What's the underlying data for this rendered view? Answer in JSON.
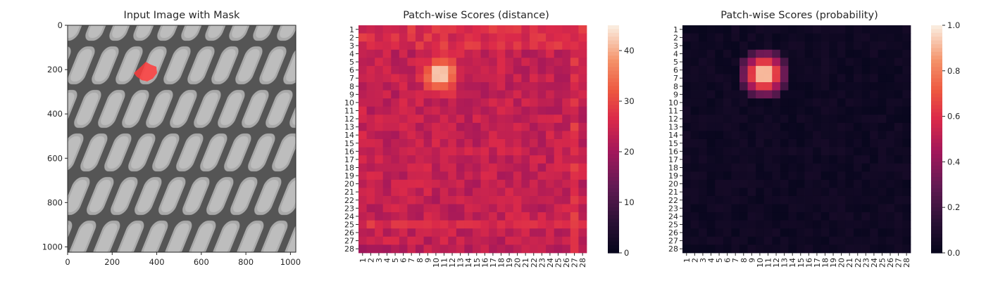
{
  "chart_data": [
    {
      "type": "image",
      "title": "Input Image with Mask",
      "xlim": [
        0,
        1024
      ],
      "ylim": [
        1024,
        0
      ],
      "x_ticks": [
        0,
        200,
        400,
        600,
        800,
        1000
      ],
      "y_ticks": [
        0,
        200,
        400,
        600,
        800,
        1000
      ],
      "image_content": "grayscale metal grid / mesh texture",
      "mask": {
        "color": "#ff3030",
        "center": [
          350,
          205
        ],
        "approx_extent": [
          [
            300,
            170
          ],
          [
            400,
            245
          ]
        ]
      }
    },
    {
      "type": "heatmap",
      "title": "Patch-wise Scores (distance)",
      "rows": 28,
      "cols": 28,
      "x_labels": [
        "1",
        "2",
        "3",
        "4",
        "5",
        "6",
        "7",
        "8",
        "9",
        "10",
        "11",
        "12",
        "13",
        "14",
        "15",
        "16",
        "17",
        "18",
        "19",
        "20",
        "21",
        "22",
        "23",
        "24",
        "25",
        "26",
        "27",
        "28"
      ],
      "y_labels": [
        "1",
        "2",
        "3",
        "4",
        "5",
        "6",
        "7",
        "8",
        "9",
        "10",
        "11",
        "12",
        "13",
        "14",
        "15",
        "16",
        "17",
        "18",
        "19",
        "20",
        "21",
        "22",
        "23",
        "24",
        "25",
        "26",
        "27",
        "28"
      ],
      "colorbar": {
        "min": 0,
        "max": 45,
        "ticks": [
          0,
          10,
          20,
          30,
          40
        ]
      },
      "colormap": "rocket",
      "background_level": 24,
      "hotspot": {
        "center_row": 5.5,
        "center_col": 9.5,
        "peak": 45
      }
    },
    {
      "type": "heatmap",
      "title": "Patch-wise Scores (probability)",
      "rows": 28,
      "cols": 28,
      "x_labels": [
        "1",
        "2",
        "3",
        "4",
        "5",
        "6",
        "7",
        "8",
        "9",
        "10",
        "11",
        "12",
        "13",
        "14",
        "15",
        "16",
        "17",
        "18",
        "19",
        "20",
        "21",
        "22",
        "23",
        "24",
        "25",
        "26",
        "27",
        "28"
      ],
      "y_labels": [
        "1",
        "2",
        "3",
        "4",
        "5",
        "6",
        "7",
        "8",
        "9",
        "10",
        "11",
        "12",
        "13",
        "14",
        "15",
        "16",
        "17",
        "18",
        "19",
        "20",
        "21",
        "22",
        "23",
        "24",
        "25",
        "26",
        "27",
        "28"
      ],
      "colorbar": {
        "min": 0.0,
        "max": 1.0,
        "ticks": [
          "0.0",
          "0.2",
          "0.4",
          "0.6",
          "0.8",
          "1.0"
        ]
      },
      "colormap": "rocket",
      "background_level": 0.02,
      "hotspot": {
        "center_row": 5.5,
        "center_col": 9.5,
        "peak": 1.0
      }
    }
  ],
  "axes_text": {
    "image_xticks": [
      "0",
      "200",
      "400",
      "600",
      "800",
      "1000"
    ],
    "image_yticks": [
      "0",
      "200",
      "400",
      "600",
      "800",
      "1000"
    ],
    "dist_cbar_ticks": [
      "0",
      "10",
      "20",
      "30",
      "40"
    ],
    "prob_cbar_ticks": [
      "0.0",
      "0.2",
      "0.4",
      "0.6",
      "0.8",
      "1.0"
    ]
  }
}
